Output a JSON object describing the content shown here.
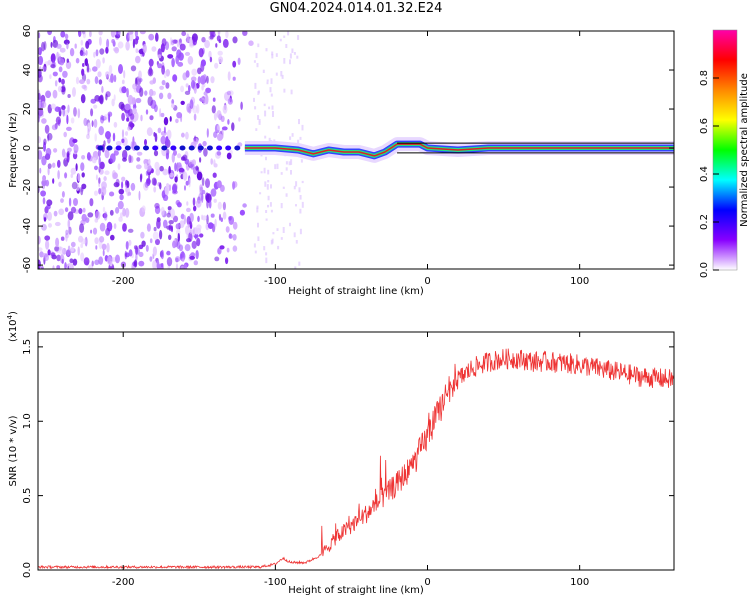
{
  "title": "GN04.2024.014.01.32.E24",
  "chart_data": [
    {
      "type": "heatmap",
      "xlabel": "Height of straight line (km)",
      "ylabel": "Frequency (Hz)",
      "xlim": [
        -256,
        162
      ],
      "ylim": [
        -62,
        60
      ],
      "xticks": [
        -200,
        -100,
        0,
        100
      ],
      "xtick_labels": [
        "-200",
        "-100",
        "0",
        "100"
      ],
      "yticks": [
        -60,
        -40,
        -20,
        0,
        20,
        40,
        60
      ],
      "ytick_labels": [
        "-60",
        "-40",
        "-20",
        "0",
        "20",
        "40",
        "60"
      ],
      "colorbar": {
        "label": "Normalized spectral amplitude",
        "range": [
          0,
          1
        ],
        "ticks": [
          0,
          0.2,
          0.4,
          0.6,
          0.8
        ],
        "tick_labels": [
          "0.0",
          "0.2",
          "0.4",
          "0.6",
          "0.8"
        ],
        "colormap": [
          "#ffffff",
          "#8800ff",
          "#0000ff",
          "#00ffff",
          "#00ff00",
          "#ffff00",
          "#ff8800",
          "#ff0000",
          "#ff00aa"
        ]
      },
      "signal_track": {
        "x_range": [
          -120,
          162
        ],
        "freq_hz": [
          [
            -120,
            0
          ],
          [
            -100,
            0
          ],
          [
            -85,
            -1
          ],
          [
            -75,
            -3
          ],
          [
            -65,
            -1
          ],
          [
            -55,
            -2
          ],
          [
            -45,
            -2
          ],
          [
            -35,
            -4
          ],
          [
            -28,
            -2
          ],
          [
            -20,
            2
          ],
          [
            -12,
            2
          ],
          [
            -5,
            2
          ],
          [
            0,
            0
          ],
          [
            20,
            -1
          ],
          [
            40,
            0
          ],
          [
            60,
            0
          ],
          [
            100,
            0
          ],
          [
            162,
            0
          ]
        ]
      },
      "noise_region_x": [
        -256,
        -115
      ],
      "grid": false
    },
    {
      "type": "line",
      "xlabel": "Height of straight line (km)",
      "ylabel": "SNR (10 * v/v)",
      "multiplier_base": "(x10",
      "multiplier_exp": "4",
      "multiplier_close": ")",
      "xlim": [
        -256,
        162
      ],
      "ylim": [
        0,
        1.6
      ],
      "xticks": [
        -200,
        -100,
        0,
        100
      ],
      "xtick_labels": [
        "-200",
        "-100",
        "0",
        "100"
      ],
      "yticks": [
        0,
        0.5,
        1.0,
        1.5
      ],
      "ytick_labels": [
        "0.0",
        "0.5",
        "1.0",
        "1.5"
      ],
      "color": "#ee3333",
      "grid": false,
      "series": [
        {
          "x": [
            -256,
            -200,
            -150,
            -110,
            -100,
            -95,
            -90,
            -80,
            -70,
            -60,
            -50,
            -40,
            -30,
            -20,
            -10,
            0,
            10,
            20,
            30,
            40,
            50,
            60,
            70,
            80,
            90,
            100,
            110,
            120,
            130,
            140,
            150,
            162
          ],
          "y": [
            0.02,
            0.02,
            0.02,
            0.02,
            0.04,
            0.08,
            0.05,
            0.05,
            0.1,
            0.22,
            0.3,
            0.38,
            0.48,
            0.58,
            0.7,
            0.9,
            1.12,
            1.28,
            1.36,
            1.4,
            1.42,
            1.42,
            1.4,
            1.4,
            1.39,
            1.38,
            1.36,
            1.34,
            1.32,
            1.3,
            1.29,
            1.28
          ]
        }
      ]
    }
  ]
}
